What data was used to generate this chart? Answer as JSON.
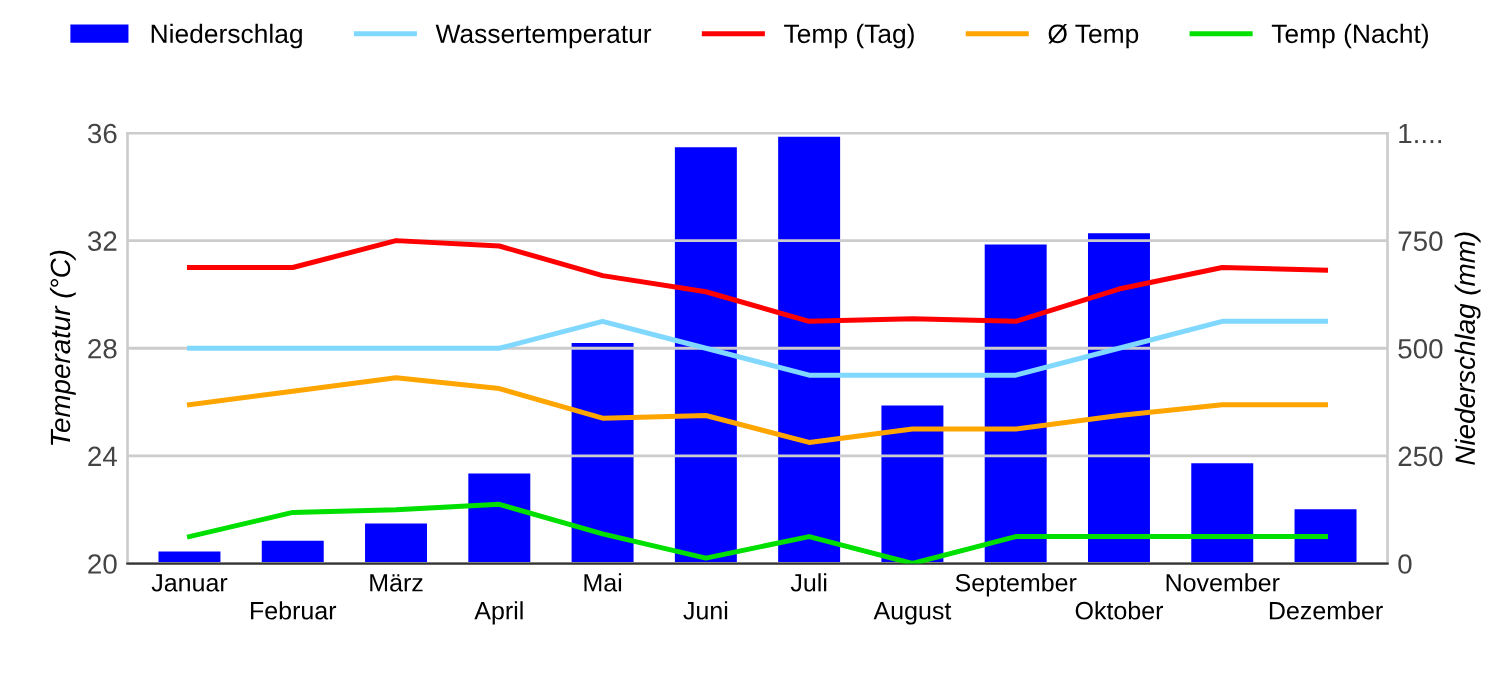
{
  "chart_data": {
    "type": "line",
    "categories": [
      "Januar",
      "Februar",
      "März",
      "April",
      "Mai",
      "Juni",
      "Juli",
      "August",
      "September",
      "Oktober",
      "November",
      "Dezember"
    ],
    "series": [
      {
        "name": "Niederschlag",
        "type": "bar",
        "axis": "y2",
        "color": "#0000ff",
        "values": [
          28,
          53,
          93,
          209,
          512,
          967,
          991,
          367,
          741,
          767,
          233,
          126
        ]
      },
      {
        "name": "Wassertemperatur",
        "color": "#80d8ff",
        "values": [
          28,
          28,
          28,
          28,
          29,
          28,
          27,
          27,
          27,
          28,
          29,
          29
        ]
      },
      {
        "name": "Temp (Tag)",
        "color": "#ff0000",
        "values": [
          31,
          31,
          32,
          31.8,
          30.7,
          30.1,
          29,
          29.1,
          29,
          30.2,
          31,
          30.9
        ]
      },
      {
        "name": "Ø Temp",
        "color": "#ffa500",
        "values": [
          25.9,
          26.4,
          26.9,
          26.5,
          25.4,
          25.5,
          24.5,
          25,
          25,
          25.5,
          25.9,
          25.9
        ]
      },
      {
        "name": "Temp (Nacht)",
        "color": "#00e000",
        "values": [
          21,
          21.9,
          22,
          22.2,
          21.1,
          20.2,
          21,
          20,
          21,
          21,
          21,
          21
        ]
      }
    ],
    "ylabel": "Temperatur (°C)",
    "y2label": "Niederschlag (mm)",
    "ylim": [
      20,
      36
    ],
    "yticks": [
      20,
      24,
      28,
      32,
      36
    ],
    "y2lim": [
      0,
      1000
    ],
    "y2ticks": [
      0,
      250,
      500,
      750,
      {
        "value": 1000,
        "label": "1...."
      }
    ],
    "grid": "y",
    "legend": "top",
    "line_style": "solid",
    "marker": "none"
  }
}
